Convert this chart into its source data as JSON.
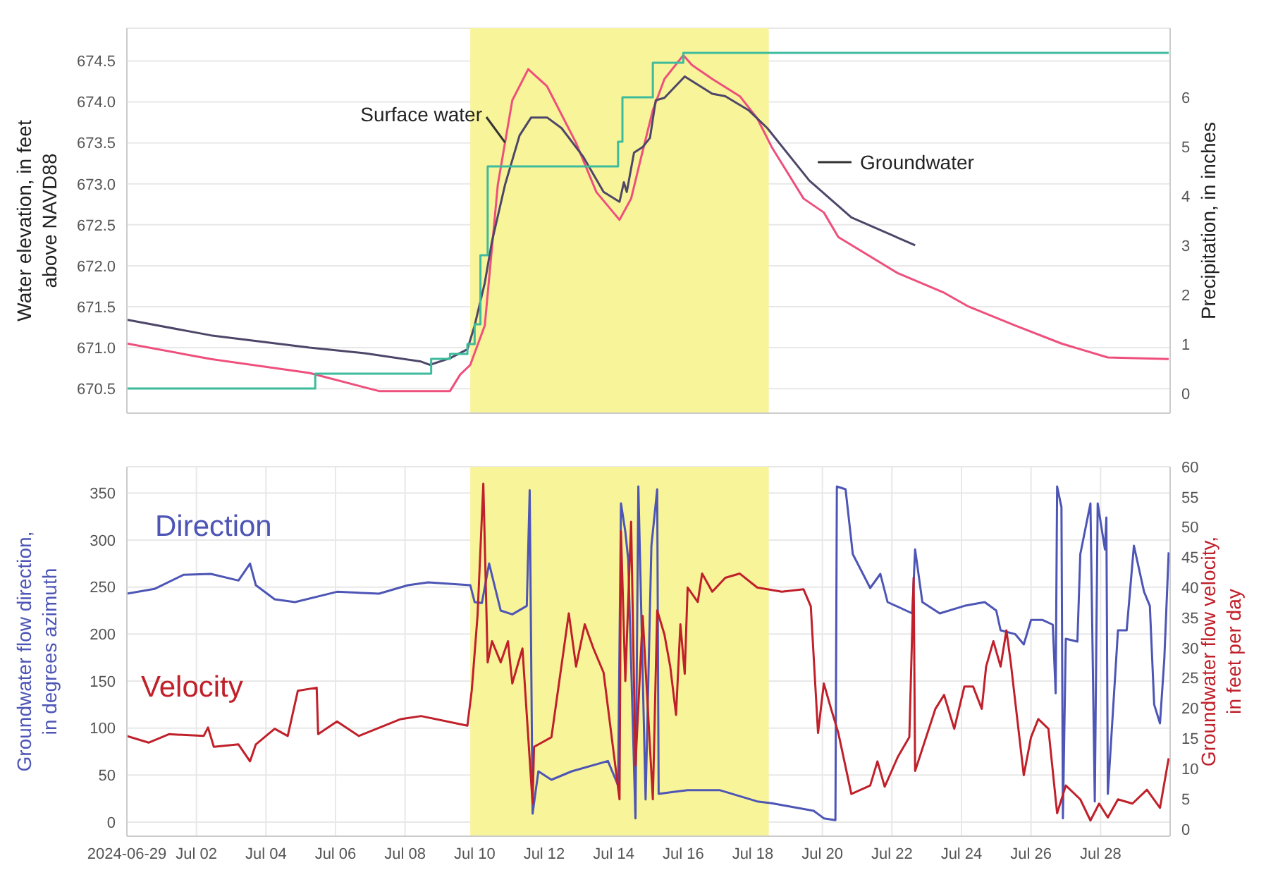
{
  "chart_data": [
    {
      "type": "line",
      "ylabel": "Water elevation, in feet above NAVD88",
      "y2label": "Precipitation, in inches",
      "xlim": [
        "2024-06-30T00:00",
        "2024-07-30T00:00"
      ],
      "xticks": [
        "2024-07-02T00:00",
        "2024-07-04T00:00",
        "2024-07-06T00:00",
        "2024-07-08T00:00",
        "2024-07-10T00:00",
        "2024-07-12T00:00",
        "2024-07-14T00:00",
        "2024-07-16T00:00",
        "2024-07-18T00:00",
        "2024-07-20T00:00",
        "2024-07-22T00:00",
        "2024-07-24T00:00",
        "2024-07-26T00:00",
        "2024-07-28T00:00"
      ],
      "ylim": [
        670.2,
        674.9
      ],
      "yticks": [
        670.5,
        {
          "value": 671,
          "label": "671.0"
        },
        671.5,
        {
          "value": 672,
          "label": "672.0"
        },
        672.5,
        {
          "value": 673,
          "label": "673.0"
        },
        673.5,
        {
          "value": 674,
          "label": "674.0"
        },
        674.5
      ],
      "y2lim": [
        -0.4,
        7.4
      ],
      "y2ticks": [
        0,
        1,
        2,
        3,
        4,
        5,
        6
      ],
      "tick_labels": "y",
      "grid": true,
      "marker": "none",
      "bands": [
        {
          "axis": "x",
          "from": "2024-07-09T21:00",
          "to": "2024-07-18T11:00",
          "color": "#f8f49a"
        }
      ],
      "series": [
        {
          "name": "Surface water",
          "color": "#ee4f7c",
          "x": [
            "2024-06-30T00:00",
            "2024-07-02T10:00",
            "2024-07-05T06:00",
            "2024-07-07T06:00",
            "2024-07-09T07:00",
            "2024-07-09T14:00",
            "2024-07-09T21:00",
            "2024-07-10T07:00",
            "2024-07-10T16:00",
            "2024-07-11T02:00",
            "2024-07-11T13:00",
            "2024-07-12T02:00",
            "2024-07-12T22:00",
            "2024-07-13T12:00",
            "2024-07-14T04:00",
            "2024-07-14T12:00",
            "2024-07-14T19:00",
            "2024-07-15T03:00",
            "2024-07-15T11:00",
            "2024-07-16T00:00",
            "2024-07-16T06:00",
            "2024-07-16T20:00",
            "2024-07-17T15:00",
            "2024-07-18T03:00",
            "2024-07-18T13:00",
            "2024-07-19T11:00",
            "2024-07-20T01:00",
            "2024-07-20T11:00",
            "2024-07-22T04:00",
            "2024-07-23T12:00",
            "2024-07-24T05:00",
            "2024-07-25T13:00",
            "2024-07-26T21:00",
            "2024-07-28T05:00",
            "2024-07-29T23:00"
          ],
          "values": [
            671.05,
            670.86,
            670.69,
            670.47,
            670.47,
            670.67,
            670.79,
            671.27,
            672.99,
            674.02,
            674.4,
            674.19,
            673.5,
            672.9,
            672.56,
            672.82,
            673.33,
            673.9,
            674.28,
            674.57,
            674.45,
            674.28,
            674.07,
            673.8,
            673.45,
            672.82,
            672.65,
            672.35,
            671.91,
            671.67,
            671.5,
            671.27,
            671.05,
            670.88,
            670.86
          ]
        },
        {
          "name": "Groundwater",
          "color": "#4e4668",
          "x": [
            "2024-06-30T00:00",
            "2024-07-02T10:00",
            "2024-07-05T06:00",
            "2024-07-06T21:00",
            "2024-07-08T11:00",
            "2024-07-08T17:00",
            "2024-07-09T07:00",
            "2024-07-09T19:00",
            "2024-07-10T00:00",
            "2024-07-10T07:00",
            "2024-07-10T12:00",
            "2024-07-10T21:00",
            "2024-07-11T07:00",
            "2024-07-11T15:00",
            "2024-07-12T02:00",
            "2024-07-12T12:00",
            "2024-07-13T03:00",
            "2024-07-13T17:00",
            "2024-07-14T04:00",
            "2024-07-14T07:00",
            "2024-07-14T09:00",
            "2024-07-14T14:00",
            "2024-07-14T20:00",
            "2024-07-15T01:00",
            "2024-07-15T05:00",
            "2024-07-15T11:00",
            "2024-07-16T01:00",
            "2024-07-16T20:00",
            "2024-07-17T05:00",
            "2024-07-17T21:00",
            "2024-07-18T10:00",
            "2024-07-19T15:00",
            "2024-07-20T20:00",
            "2024-07-22T16:00"
          ],
          "values": [
            671.34,
            671.15,
            671.0,
            670.93,
            670.83,
            670.79,
            670.87,
            670.98,
            671.27,
            671.79,
            672.3,
            672.99,
            673.59,
            673.81,
            673.81,
            673.68,
            673.33,
            672.9,
            672.78,
            673.02,
            672.9,
            673.38,
            673.45,
            673.56,
            674.02,
            674.05,
            674.31,
            674.1,
            674.07,
            673.9,
            673.68,
            673.04,
            672.59,
            672.25
          ]
        },
        {
          "type": "step",
          "axis": "y2",
          "color": "#3dbb9c",
          "x": [
            "2024-06-30T00:00",
            "2024-07-05T10:00",
            "2024-07-08T18:00",
            "2024-07-09T07:00",
            "2024-07-09T19:00",
            "2024-07-10T00:00",
            "2024-07-10T04:00",
            "2024-07-10T09:00",
            "2024-07-14T03:00",
            "2024-07-14T06:00",
            "2024-07-15T03:00",
            "2024-07-16T00:00",
            "2024-07-29T23:00"
          ],
          "values": [
            0.1,
            0.4,
            0.7,
            0.8,
            1.0,
            1.4,
            2.8,
            4.6,
            5.1,
            6.0,
            6.7,
            6.9,
            6.9
          ]
        }
      ]
    },
    {
      "type": "line",
      "ylabel": "Groundwater flow direction, in degrees azimuth",
      "y2label": "Groundwater flow velocity, in feet per day",
      "xlim": [
        "2024-06-30T00:00",
        "2024-07-30T00:00"
      ],
      "xticks": [
        {
          "value": "2024-06-30T00:00",
          "label": "2024-06-29"
        },
        {
          "value": "2024-07-02T00:00",
          "label": "Jul 02"
        },
        {
          "value": "2024-07-04T00:00",
          "label": "Jul 04"
        },
        {
          "value": "2024-07-06T00:00",
          "label": "Jul 06"
        },
        {
          "value": "2024-07-08T00:00",
          "label": "Jul 08"
        },
        {
          "value": "2024-07-10T00:00",
          "label": "Jul 10"
        },
        {
          "value": "2024-07-12T00:00",
          "label": "Jul 12"
        },
        {
          "value": "2024-07-14T00:00",
          "label": "Jul 14"
        },
        {
          "value": "2024-07-16T00:00",
          "label": "Jul 16"
        },
        {
          "value": "2024-07-18T00:00",
          "label": "Jul 18"
        },
        {
          "value": "2024-07-20T00:00",
          "label": "Jul 20"
        },
        {
          "value": "2024-07-22T00:00",
          "label": "Jul 22"
        },
        {
          "value": "2024-07-24T00:00",
          "label": "Jul 24"
        },
        {
          "value": "2024-07-26T00:00",
          "label": "Jul 26"
        },
        {
          "value": "2024-07-28T00:00",
          "label": "Jul 28"
        }
      ],
      "ylim": [
        -15,
        378
      ],
      "yticks": [
        0,
        50,
        100,
        150,
        200,
        250,
        300,
        350
      ],
      "y2lim": [
        -1.2,
        60
      ],
      "y2ticks": [
        0,
        5,
        10,
        15,
        20,
        25,
        30,
        35,
        40,
        45,
        50,
        55,
        60
      ],
      "grid": true,
      "marker": "none",
      "bands": [
        {
          "axis": "x",
          "from": "2024-07-09T21:00",
          "to": "2024-07-18T11:00",
          "color": "#f8f49a"
        }
      ],
      "series": [
        {
          "name": "Direction",
          "color": "#4d55b5",
          "x": [
            "2024-06-30T00:00",
            "2024-06-30T19:00",
            "2024-07-01T15:00",
            "2024-07-02T10:00",
            "2024-07-03T05:00",
            "2024-07-03T13:00",
            "2024-07-03T17:00",
            "2024-07-04T06:00",
            "2024-07-04T20:00",
            "2024-07-06T01:00",
            "2024-07-07T06:00",
            "2024-07-08T02:00",
            "2024-07-08T16:00",
            "2024-07-09T21:00",
            "2024-07-10T00:00",
            "2024-07-10T05:00",
            "2024-07-10T10:00",
            "2024-07-10T18:00",
            "2024-07-11T02:00",
            "2024-07-11T12:00",
            "2024-07-11T14:00",
            "2024-07-11T16:00",
            "2024-07-11T20:00",
            "2024-07-12T05:00",
            "2024-07-12T19:00",
            "2024-07-13T20:00",
            "2024-07-14T03:00",
            "2024-07-14T05:00",
            "2024-07-14T08:00",
            "2024-07-14T10:00",
            "2024-07-14T15:00",
            "2024-07-14T17:00",
            "2024-07-14T22:00",
            "2024-07-15T02:00",
            "2024-07-15T06:00",
            "2024-07-15T07:00",
            "2024-07-15T17:00",
            "2024-07-16T03:00",
            "2024-07-17T01:00",
            "2024-07-18T03:00",
            "2024-07-18T13:00",
            "2024-07-19T18:00",
            "2024-07-20T01:00",
            "2024-07-20T09:00",
            "2024-07-20T10:00",
            "2024-07-20T16:00",
            "2024-07-20T21:00",
            "2024-07-21T09:00",
            "2024-07-21T16:00",
            "2024-07-21T21:00",
            "2024-07-22T14:00",
            "2024-07-22T16:00",
            "2024-07-22T21:00",
            "2024-07-23T09:00",
            "2024-07-24T02:00",
            "2024-07-24T16:00",
            "2024-07-25T00:00",
            "2024-07-25T03:00",
            "2024-07-25T13:00",
            "2024-07-25T19:00",
            "2024-07-26T00:00",
            "2024-07-26T08:00",
            "2024-07-26T15:00",
            "2024-07-26T17:00",
            "2024-07-26T18:00",
            "2024-07-26T21:00",
            "2024-07-26T22:00",
            "2024-07-27T00:00",
            "2024-07-27T08:00",
            "2024-07-27T10:00",
            "2024-07-27T17:00",
            "2024-07-27T20:00",
            "2024-07-27T22:00",
            "2024-07-28T03:00",
            "2024-07-28T04:00",
            "2024-07-28T05:00",
            "2024-07-28T12:00",
            "2024-07-28T18:00",
            "2024-07-28T23:00",
            "2024-07-29T06:00",
            "2024-07-29T10:00",
            "2024-07-29T13:00",
            "2024-07-29T17:00",
            "2024-07-29T20:00",
            "2024-07-29T23:00"
          ],
          "values": [
            243,
            248,
            263,
            264,
            257,
            275,
            252,
            237,
            234,
            245,
            243,
            252,
            255,
            252,
            234,
            233,
            275,
            225,
            221,
            230,
            353,
            9,
            54,
            45,
            54,
            65,
            39,
            339,
            309,
            279,
            4,
            357,
            24,
            294,
            354,
            30,
            32,
            34,
            34,
            22,
            20,
            12,
            4,
            2,
            357,
            354,
            285,
            249,
            264,
            234,
            222,
            290,
            234,
            222,
            230,
            234,
            225,
            204,
            200,
            189,
            215,
            215,
            210,
            137,
            357,
            335,
            4,
            195,
            192,
            285,
            339,
            22,
            339,
            290,
            324,
            30,
            204,
            204,
            294,
            245,
            230,
            125,
            105,
            174,
            287
          ]
        },
        {
          "name": "Velocity",
          "color": "#c0202a",
          "axis": "y2",
          "x": [
            "2024-06-30T00:00",
            "2024-06-30T15:00",
            "2024-07-01T05:00",
            "2024-07-02T05:00",
            "2024-07-02T08:00",
            "2024-07-02T12:00",
            "2024-07-03T05:00",
            "2024-07-03T13:00",
            "2024-07-03T17:00",
            "2024-07-04T06:00",
            "2024-07-04T15:00",
            "2024-07-04T22:00",
            "2024-07-05T11:00",
            "2024-07-05T12:00",
            "2024-07-06T01:00",
            "2024-07-06T16:00",
            "2024-07-07T21:00",
            "2024-07-08T11:00",
            "2024-07-09T19:00",
            "2024-07-09T22:00",
            "2024-07-10T02:00",
            "2024-07-10T06:00",
            "2024-07-10T09:00",
            "2024-07-10T12:00",
            "2024-07-10T18:00",
            "2024-07-10T23:00",
            "2024-07-11T02:00",
            "2024-07-11T09:00",
            "2024-07-11T16:00",
            "2024-07-11T17:00",
            "2024-07-12T05:00",
            "2024-07-12T17:00",
            "2024-07-12T22:00",
            "2024-07-13T04:00",
            "2024-07-13T10:00",
            "2024-07-13T17:00",
            "2024-07-14T04:00",
            "2024-07-14T05:00",
            "2024-07-14T08:00",
            "2024-07-14T12:00",
            "2024-07-14T15:00",
            "2024-07-14T20:00",
            "2024-07-15T03:00",
            "2024-07-15T06:00",
            "2024-07-15T11:00",
            "2024-07-15T15:00",
            "2024-07-15T19:00",
            "2024-07-15T22:00",
            "2024-07-16T01:00",
            "2024-07-16T03:00",
            "2024-07-16T10:00",
            "2024-07-16T13:00",
            "2024-07-16T20:00",
            "2024-07-17T05:00",
            "2024-07-17T15:00",
            "2024-07-18T03:00",
            "2024-07-18T20:00",
            "2024-07-19T11:00",
            "2024-07-19T16:00",
            "2024-07-19T21:00",
            "2024-07-20T01:00",
            "2024-07-20T06:00",
            "2024-07-20T11:00",
            "2024-07-20T20:00",
            "2024-07-21T09:00",
            "2024-07-21T14:00",
            "2024-07-21T19:00",
            "2024-07-22T04:00",
            "2024-07-22T12:00",
            "2024-07-22T15:00",
            "2024-07-22T16:00",
            "2024-07-23T06:00",
            "2024-07-23T12:00",
            "2024-07-23T19:00",
            "2024-07-24T02:00",
            "2024-07-24T08:00",
            "2024-07-24T14:00",
            "2024-07-24T17:00",
            "2024-07-24T22:00",
            "2024-07-25T03:00",
            "2024-07-25T07:00",
            "2024-07-25T10:00",
            "2024-07-25T13:00",
            "2024-07-25T19:00",
            "2024-07-26T00:00",
            "2024-07-26T05:00",
            "2024-07-26T12:00",
            "2024-07-26T18:00",
            "2024-07-27T00:00",
            "2024-07-27T10:00",
            "2024-07-27T17:00",
            "2024-07-27T23:00",
            "2024-07-28T05:00",
            "2024-07-28T12:00",
            "2024-07-28T22:00",
            "2024-07-29T08:00",
            "2024-07-29T17:00",
            "2024-07-29T23:00"
          ],
          "values": [
            15.4,
            14.3,
            15.7,
            15.4,
            16.8,
            13.6,
            14,
            11.2,
            14,
            16.6,
            15.4,
            22.9,
            23.4,
            15.7,
            17.8,
            15.4,
            18.2,
            18.7,
            17.1,
            22.9,
            35.3,
            57.2,
            27.6,
            31.1,
            27.6,
            31.1,
            24.1,
            29.9,
            4.2,
            13.6,
            15.2,
            35.7,
            26.9,
            33.9,
            29.9,
            25.9,
            4.9,
            49.3,
            24.5,
            50.9,
            10.5,
            35.3,
            4.9,
            36.2,
            32.2,
            26.9,
            18.9,
            33.9,
            25.7,
            40,
            37.6,
            42.3,
            39.3,
            41.6,
            42.3,
            40,
            39.3,
            39.7,
            36.9,
            15.9,
            24.1,
            19.9,
            15.9,
            5.8,
            7.2,
            11.2,
            7,
            11.9,
            15.2,
            41.6,
            9.6,
            19.9,
            22.2,
            16.6,
            23.6,
            23.6,
            19.9,
            26.9,
            31.1,
            26.9,
            32.9,
            27.6,
            21.3,
            8.9,
            15.2,
            18.2,
            16.6,
            2.6,
            7.2,
            4.9,
            1.4,
            4.2,
            1.9,
            4.9,
            4.2,
            6.5,
            3.5,
            11.7
          ]
        }
      ]
    }
  ]
}
